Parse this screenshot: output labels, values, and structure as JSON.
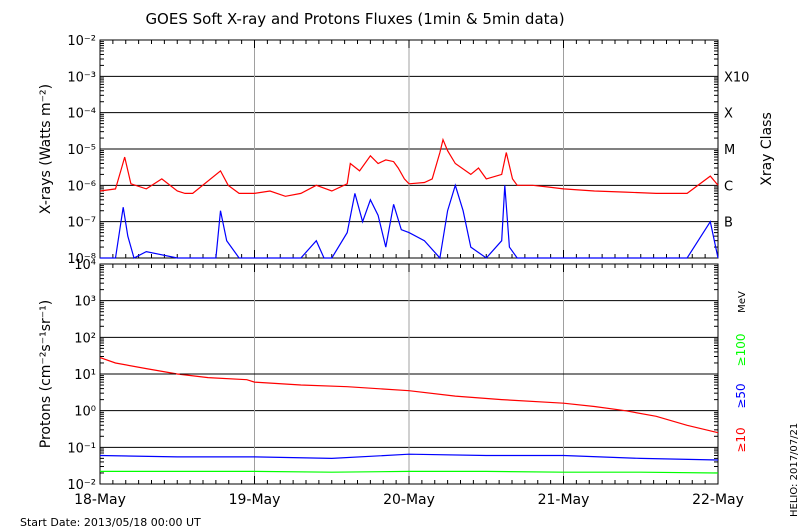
{
  "title": "GOES Soft X-ray and Protons Fluxes   (1min & 5min data)",
  "footer": "Start Date: 2013/05/18 00:00 UT",
  "credit": "HELIO: 2017/07/21",
  "colors": {
    "xray_long": "#ff0000",
    "xray_short": "#0000ff",
    "p10": "#ff0000",
    "p50": "#0000ff",
    "p100": "#00ff00",
    "grid": "#000000",
    "day_line": "#a0a0a0"
  },
  "chart_data": [
    {
      "type": "line",
      "panel": "xray",
      "ylabel": "X-rays (Watts m⁻²)",
      "yscale": "log",
      "ylim": [
        1e-08,
        0.01
      ],
      "x_ticks": [
        "18-May",
        "19-May",
        "20-May",
        "21-May",
        "22-May"
      ],
      "y_ticks": [
        "10⁻²",
        "10⁻³",
        "10⁻⁴",
        "10⁻⁵",
        "10⁻⁶",
        "10⁻⁷",
        "10⁻⁸"
      ],
      "right_label": "Xray Class",
      "classes": [
        {
          "name": "X10",
          "flux": 0.001
        },
        {
          "name": "X",
          "flux": 0.0001
        },
        {
          "name": "M",
          "flux": 1e-05
        },
        {
          "name": "C",
          "flux": 1e-06
        },
        {
          "name": "B",
          "flux": 1e-07
        }
      ],
      "series": [
        {
          "color": "#ff0000",
          "x": [
            0,
            0.1,
            0.14,
            0.16,
            0.2,
            0.3,
            0.4,
            0.5,
            0.55,
            0.6,
            0.78,
            0.83,
            0.9,
            1.0,
            1.1,
            1.2,
            1.3,
            1.4,
            1.5,
            1.6,
            1.62,
            1.68,
            1.75,
            1.8,
            1.85,
            1.9,
            1.93,
            1.97,
            2.0,
            2.1,
            2.15,
            2.2,
            2.22,
            2.25,
            2.3,
            2.4,
            2.45,
            2.5,
            2.6,
            2.63,
            2.67,
            2.7,
            2.8,
            2.9,
            3.0,
            3.2,
            3.4,
            3.6,
            3.8,
            3.95,
            4.0
          ],
          "y": [
            7e-07,
            8e-07,
            3e-06,
            6e-06,
            1.1e-06,
            8e-07,
            1.5e-06,
            7e-07,
            6e-07,
            6e-07,
            2.5e-06,
            1e-06,
            6e-07,
            6e-07,
            7e-07,
            5e-07,
            6e-07,
            1e-06,
            7e-07,
            1.1e-06,
            4e-06,
            2.5e-06,
            6.5e-06,
            4e-06,
            5e-06,
            4.5e-06,
            3e-06,
            1.5e-06,
            1.1e-06,
            1.2e-06,
            1.5e-06,
            8e-06,
            1.8e-05,
            9e-06,
            4e-06,
            2e-06,
            3e-06,
            1.5e-06,
            2e-06,
            8e-06,
            1.5e-06,
            1e-06,
            1e-06,
            9e-07,
            8e-07,
            7e-07,
            6.5e-07,
            6e-07,
            6e-07,
            1.8e-06,
            1e-06
          ]
        },
        {
          "color": "#0000ff",
          "x": [
            0,
            0.05,
            0.1,
            0.15,
            0.18,
            0.22,
            0.3,
            0.5,
            0.75,
            0.78,
            0.82,
            0.9,
            1.0,
            1.1,
            1.3,
            1.4,
            1.45,
            1.5,
            1.6,
            1.65,
            1.7,
            1.75,
            1.8,
            1.85,
            1.9,
            1.95,
            2.0,
            2.1,
            2.2,
            2.25,
            2.3,
            2.35,
            2.4,
            2.5,
            2.6,
            2.62,
            2.65,
            2.7,
            2.8,
            3.0,
            3.2,
            3.4,
            3.6,
            3.8,
            3.95,
            4.0
          ],
          "y": [
            1e-08,
            1e-08,
            1e-08,
            2.5e-07,
            4e-08,
            1e-08,
            1.5e-08,
            1e-08,
            1e-08,
            2e-07,
            3e-08,
            1e-08,
            1e-08,
            1e-08,
            1e-08,
            3e-08,
            1e-08,
            1e-08,
            5e-08,
            6e-07,
            1e-07,
            4e-07,
            1.5e-07,
            2e-08,
            3e-07,
            6e-08,
            5e-08,
            3e-08,
            1e-08,
            2e-07,
            1e-06,
            2e-07,
            2e-08,
            1e-08,
            3e-08,
            1e-06,
            2e-08,
            1e-08,
            1e-08,
            1e-08,
            1e-08,
            1e-08,
            1e-08,
            1e-08,
            1e-07,
            1e-08
          ]
        }
      ]
    },
    {
      "type": "line",
      "panel": "protons",
      "ylabel": "Protons (cm⁻²s⁻¹sr⁻¹)",
      "yscale": "log",
      "ylim": [
        0.01,
        10000
      ],
      "x_ticks": [
        "18-May",
        "19-May",
        "20-May",
        "21-May",
        "22-May"
      ],
      "y_ticks": [
        "10⁴",
        "10³",
        "10²",
        "10¹",
        "10⁰",
        "10⁻¹",
        "10⁻²"
      ],
      "unit_label": "MeV",
      "threshold": 10,
      "series": [
        {
          "name": "≥10",
          "color": "#ff0000",
          "x": [
            0,
            0.1,
            0.3,
            0.5,
            0.7,
            0.95,
            1.0,
            1.3,
            1.6,
            2.0,
            2.3,
            2.6,
            3.0,
            3.2,
            3.4,
            3.6,
            3.8,
            4.0
          ],
          "y": [
            28,
            20,
            14,
            10,
            8,
            7,
            6,
            5,
            4.5,
            3.5,
            2.5,
            2,
            1.6,
            1.3,
            1.0,
            0.7,
            0.4,
            0.25
          ]
        },
        {
          "name": "≥50",
          "color": "#0000ff",
          "x": [
            0,
            0.5,
            1.0,
            1.5,
            2.0,
            2.5,
            3.0,
            3.5,
            4.0
          ],
          "y": [
            0.06,
            0.055,
            0.055,
            0.05,
            0.065,
            0.06,
            0.06,
            0.05,
            0.045
          ]
        },
        {
          "name": "≥100",
          "color": "#00ff00",
          "x": [
            0,
            0.5,
            1.0,
            1.5,
            2.0,
            2.5,
            3.0,
            3.5,
            4.0
          ],
          "y": [
            0.022,
            0.022,
            0.022,
            0.021,
            0.022,
            0.022,
            0.021,
            0.021,
            0.02
          ]
        }
      ]
    }
  ]
}
